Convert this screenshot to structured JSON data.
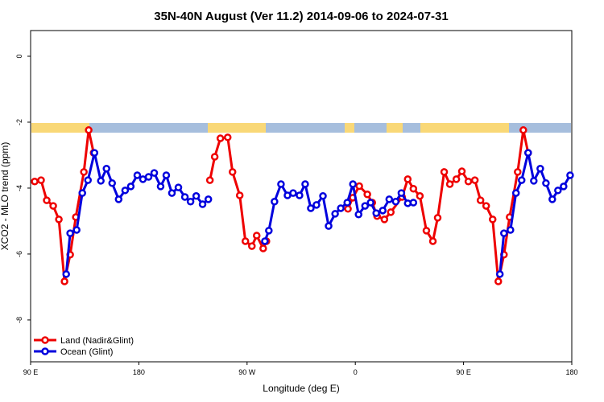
{
  "chart_data": {
    "type": "line",
    "title": "35N-40N August (Ver 11.2)   2014-09-06 to 2024-07-31",
    "x_label": "Longitude (deg E)",
    "y_label": "XCO2 - MLO trend (ppm)",
    "xlim": [
      90,
      540
    ],
    "ylim": [
      -9.27,
      0.78
    ],
    "xticks": [
      {
        "value": 90,
        "label": "90 E"
      },
      {
        "value": 180,
        "label": "180"
      },
      {
        "value": 270,
        "label": "90 W"
      },
      {
        "value": 360,
        "label": "0"
      },
      {
        "value": 450,
        "label": "90 E"
      },
      {
        "value": 540,
        "label": "180"
      }
    ],
    "yticks": [
      0,
      -2,
      -4,
      -6,
      -8
    ],
    "legend": "bottom-left",
    "series": [
      {
        "name": "Land (Nadir&Glint)",
        "color": "#ee0000",
        "x": [
          93.4,
          98.7,
          103.4,
          108.8,
          113.5,
          118.2,
          122.9,
          127.6,
          134.3,
          138.3,
          142.4,
          null,
          239.1,
          243.1,
          247.8,
          253.9,
          257.9,
          263.9,
          268.6,
          274.0,
          278.0,
          283.4,
          286.1,
          null,
          353.9,
          357.9,
          363.3,
          370.0,
          374.1,
          378.1,
          384.2,
          389.5,
          398.9,
          403.6,
          408.3,
          413.7,
          419.1,
          424.5,
          428.5,
          433.9,
          438.6,
          444.0,
          448.6,
          454.0,
          459.4,
          464.1,
          468.8,
          474.2,
          478.9,
          483.6,
          488.3,
          495.0,
          499.7,
          503.7
        ],
        "values": [
          -3.8,
          -3.76,
          -4.37,
          -4.54,
          -4.95,
          -6.83,
          -6.02,
          -4.88,
          -3.51,
          -2.24,
          -2.93,
          null,
          -3.76,
          -3.05,
          -2.49,
          -2.46,
          -3.51,
          -4.22,
          -5.61,
          -5.76,
          -5.44,
          -5.83,
          -5.61,
          null,
          -4.63,
          -4.29,
          -3.94,
          -4.19,
          -4.44,
          -4.85,
          -4.95,
          -4.73,
          -4.27,
          -3.73,
          -4.02,
          -4.24,
          -5.29,
          -5.61,
          -4.9,
          -3.51,
          -3.88,
          -3.73,
          -3.49,
          -3.8,
          -3.76,
          -4.37,
          -4.54,
          -4.95,
          -6.83,
          -6.02,
          -4.88,
          -3.51,
          -2.24,
          -2.93
        ]
      },
      {
        "name": "Ocean (Glint)",
        "color": "#0000dd",
        "x": [
          119.6,
          122.9,
          128.3,
          133.0,
          137.7,
          143.1,
          148.4,
          153.1,
          157.8,
          163.2,
          168.6,
          173.3,
          178.7,
          183.4,
          188.1,
          192.8,
          198.1,
          202.8,
          207.5,
          212.9,
          218.3,
          223.0,
          227.7,
          233.0,
          237.8,
          null,
          284.8,
          288.1,
          292.8,
          298.2,
          303.6,
          308.3,
          313.6,
          318.3,
          323.0,
          327.7,
          333.1,
          337.8,
          343.2,
          347.9,
          353.3,
          358.0,
          362.7,
          368.1,
          372.7,
          377.4,
          382.8,
          388.2,
          393.6,
          398.3,
          403.6,
          408.3,
          null,
          480.2,
          483.6,
          489.0,
          493.6,
          498.3,
          503.7,
          508.4,
          513.8,
          518.5,
          523.8,
          528.5,
          533.2,
          538.6
        ],
        "values": [
          -6.61,
          -5.37,
          -5.27,
          -4.15,
          -3.76,
          -2.93,
          -3.78,
          -3.41,
          -3.85,
          -4.34,
          -4.07,
          -3.95,
          -3.61,
          -3.73,
          -3.66,
          -3.54,
          -3.95,
          -3.61,
          -4.15,
          -3.98,
          -4.27,
          -4.41,
          -4.24,
          -4.49,
          -4.34,
          null,
          -5.61,
          -5.29,
          -4.41,
          -3.88,
          -4.22,
          -4.15,
          -4.22,
          -3.88,
          -4.61,
          -4.51,
          -4.24,
          -5.15,
          -4.78,
          -4.61,
          -4.44,
          -3.88,
          -4.8,
          -4.54,
          -4.44,
          -4.76,
          -4.68,
          -4.34,
          -4.41,
          -4.15,
          -4.46,
          -4.44,
          null,
          -6.61,
          -5.37,
          -5.27,
          -4.15,
          -3.76,
          -2.93,
          -3.78,
          -3.41,
          -3.85,
          -4.34,
          -4.07,
          -3.95,
          -3.61
        ]
      }
    ]
  }
}
